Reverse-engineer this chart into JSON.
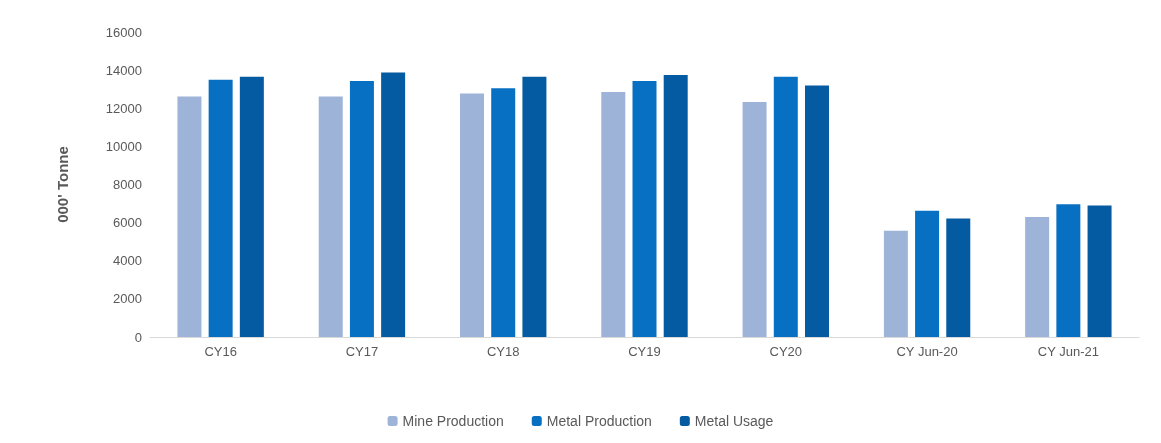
{
  "chart_data": {
    "type": "bar",
    "ylabel": "000' Tonne",
    "categories": [
      "CY16",
      "CY17",
      "CY18",
      "CY19",
      "CY20",
      "CY Jun-20",
      "CY Jun-21"
    ],
    "series": [
      {
        "name": "Mine Production",
        "color": "#9db3d8",
        "values": [
          12610,
          12610,
          12770,
          12850,
          12330,
          5570,
          6290
        ]
      },
      {
        "name": "Metal Production",
        "color": "#0870c2",
        "values": [
          13490,
          13430,
          13050,
          13430,
          13650,
          6620,
          6960
        ]
      },
      {
        "name": "Metal Usage",
        "color": "#055ba1",
        "values": [
          13650,
          13880,
          13650,
          13740,
          13190,
          6210,
          6900
        ]
      }
    ],
    "ylim": [
      0,
      16000
    ],
    "yticks": [
      0,
      2000,
      4000,
      6000,
      8000,
      10000,
      12000,
      14000,
      16000
    ],
    "grid": false,
    "legend": "bottom"
  }
}
